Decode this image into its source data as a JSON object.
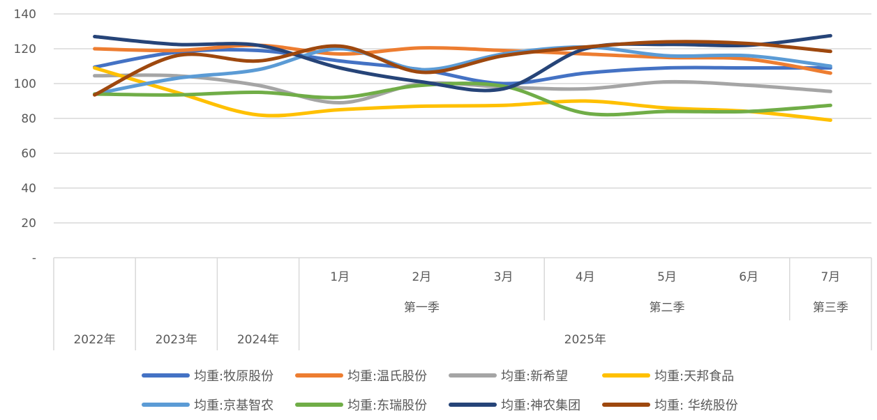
{
  "chart_data": {
    "type": "line",
    "title": "",
    "xlabel": "",
    "ylabel": "",
    "ylim": [
      0,
      140
    ],
    "y_ticks": [
      {
        "value": 0,
        "label": "-"
      },
      {
        "value": 20,
        "label": "20"
      },
      {
        "value": 40,
        "label": "40"
      },
      {
        "value": 60,
        "label": "60"
      },
      {
        "value": 80,
        "label": "80"
      },
      {
        "value": 100,
        "label": "100"
      },
      {
        "value": 120,
        "label": "120"
      },
      {
        "value": 140,
        "label": "140"
      }
    ],
    "grid": "horizontal",
    "smooth": true,
    "legend_position": "bottom",
    "categories": [
      "2022年",
      "2023年",
      "2024年",
      "1月",
      "2月",
      "3月",
      "4月",
      "5月",
      "6月",
      "7月"
    ],
    "axis_levels": {
      "months": [
        "1月",
        "2月",
        "3月",
        "4月",
        "5月",
        "6月",
        "7月"
      ],
      "quarters": [
        {
          "label": "第一季",
          "span": 3
        },
        {
          "label": "第二季",
          "span": 3
        },
        {
          "label": "第三季",
          "span": 1
        }
      ],
      "years": [
        {
          "label": "2022年",
          "span": 1
        },
        {
          "label": "2023年",
          "span": 1
        },
        {
          "label": "2024年",
          "span": 1
        },
        {
          "label": "2025年",
          "span": 7
        }
      ]
    },
    "series": [
      {
        "name": "均重:牧原股份",
        "color": "#4472C4",
        "values": [
          109.5,
          118,
          119,
          113,
          108,
          100,
          106,
          109,
          109,
          109
        ]
      },
      {
        "name": "均重:温氏股份",
        "color": "#ED7D31",
        "values": [
          120,
          119,
          122,
          117,
          120.5,
          119,
          117,
          115,
          114,
          106
        ]
      },
      {
        "name": "均重:新希望",
        "color": "#A5A5A5",
        "values": [
          104.5,
          104.5,
          99,
          89,
          100,
          98,
          97,
          101,
          99,
          95.5
        ]
      },
      {
        "name": "均重:天邦食品",
        "color": "#FFC000",
        "values": [
          109,
          95,
          82,
          85,
          87,
          87.5,
          90,
          86,
          84,
          79
        ]
      },
      {
        "name": "均重:京基智农",
        "color": "#5B9BD5",
        "values": [
          94,
          103,
          108,
          120,
          108,
          117,
          121,
          116,
          116,
          110
        ]
      },
      {
        "name": "均重:东瑞股份",
        "color": "#70AD47",
        "values": [
          94,
          93.5,
          95,
          92,
          99,
          98.5,
          83,
          84,
          84,
          87.5
        ]
      },
      {
        "name": "均重:神农集团",
        "color": "#264478",
        "values": [
          127,
          122.5,
          122,
          109,
          101,
          97,
          120,
          122.5,
          122,
          127.5
        ]
      },
      {
        "name": "均重: 华统股份",
        "color": "#9E480E",
        "values": [
          93.5,
          116,
          113,
          121.5,
          106.5,
          116,
          121,
          124,
          123,
          118.5
        ]
      }
    ]
  }
}
